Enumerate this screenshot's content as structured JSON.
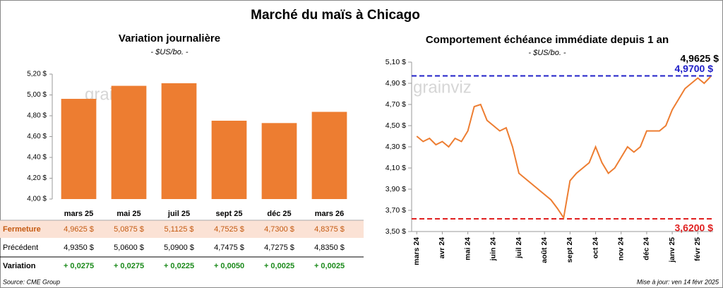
{
  "header": {
    "title": "Marché du maïs à Chicago"
  },
  "chart_data": [
    {
      "type": "bar",
      "title": "Variation journalière",
      "subtitle": "- $US/bo. -",
      "watermark": "grainviz",
      "categories": [
        "mars 25",
        "mai 25",
        "juil 25",
        "sept 25",
        "déc 25",
        "mars 26"
      ],
      "values": [
        4.9625,
        5.0875,
        5.1125,
        4.7525,
        4.73,
        4.8375
      ],
      "value_labels": [
        "4,9625  $",
        "5,0875  $",
        "5,1125  $",
        "4,7525  $",
        "4,7300  $",
        "4,8375  $"
      ],
      "color": "#ed7d31",
      "ylim": [
        4.0,
        5.2
      ],
      "yticks": [
        {
          "value": 4.0,
          "label": "4,00 $"
        },
        {
          "value": 4.2,
          "label": "4,20 $"
        },
        {
          "value": 4.4,
          "label": "4,40 $"
        },
        {
          "value": 4.6,
          "label": "4,60 $"
        },
        {
          "value": 4.8,
          "label": "4,80 $"
        },
        {
          "value": 5.0,
          "label": "5,00 $"
        },
        {
          "value": 5.2,
          "label": "5,20 $"
        }
      ]
    },
    {
      "type": "line",
      "title": "Comportement échéance immédiate depuis 1 an",
      "subtitle": "- $US/bo. -",
      "watermark": "grainviz",
      "x": [
        0,
        0.25,
        0.5,
        0.75,
        1,
        1.25,
        1.5,
        1.75,
        2,
        2.25,
        2.5,
        2.75,
        3,
        3.25,
        3.5,
        3.75,
        4,
        4.25,
        4.5,
        4.75,
        5,
        5.25,
        5.5,
        5.75,
        6,
        6.25,
        6.5,
        6.75,
        7,
        7.25,
        7.5,
        7.75,
        8,
        8.25,
        8.5,
        8.75,
        9,
        9.25,
        9.5,
        9.75,
        10,
        10.25,
        10.5,
        10.75,
        11,
        11.25,
        11.5
      ],
      "values": [
        4.4,
        4.35,
        4.38,
        4.32,
        4.35,
        4.3,
        4.38,
        4.35,
        4.45,
        4.68,
        4.7,
        4.55,
        4.5,
        4.45,
        4.48,
        4.3,
        4.05,
        4.0,
        3.95,
        3.9,
        3.85,
        3.8,
        3.72,
        3.63,
        3.98,
        4.05,
        4.1,
        4.15,
        4.3,
        4.15,
        4.05,
        4.1,
        4.2,
        4.3,
        4.25,
        4.3,
        4.45,
        4.45,
        4.45,
        4.5,
        4.65,
        4.75,
        4.85,
        4.9,
        4.95,
        4.9,
        4.9625
      ],
      "color": "#ed7d31",
      "ylim": [
        3.5,
        5.1
      ],
      "xlim": [
        -0.2,
        11.6
      ],
      "yticks": [
        {
          "value": 3.5,
          "label": "3,50 $"
        },
        {
          "value": 3.7,
          "label": "3,70 $"
        },
        {
          "value": 3.9,
          "label": "3,90 $"
        },
        {
          "value": 4.1,
          "label": "4,10 $"
        },
        {
          "value": 4.3,
          "label": "4,30 $"
        },
        {
          "value": 4.5,
          "label": "4,50 $"
        },
        {
          "value": 4.7,
          "label": "4,70 $"
        },
        {
          "value": 4.9,
          "label": "4,90 $"
        },
        {
          "value": 5.1,
          "label": "5,10 $"
        }
      ],
      "xticks": [
        {
          "value": 0,
          "label": "mars 24"
        },
        {
          "value": 1,
          "label": "avr 24"
        },
        {
          "value": 2,
          "label": "mai 24"
        },
        {
          "value": 3,
          "label": "juin 24"
        },
        {
          "value": 4,
          "label": "juil 24"
        },
        {
          "value": 5,
          "label": "août 24"
        },
        {
          "value": 6,
          "label": "sept 24"
        },
        {
          "value": 7,
          "label": "oct 24"
        },
        {
          "value": 8,
          "label": "nov 24"
        },
        {
          "value": 9,
          "label": "déc 24"
        },
        {
          "value": 10,
          "label": "janv 25"
        },
        {
          "value": 11,
          "label": "févr 25"
        }
      ],
      "max_line": {
        "value": 4.97,
        "label": "4,9700 $",
        "color": "#2020c8"
      },
      "min_line": {
        "value": 3.62,
        "label": "3,6200 $",
        "color": "#e02020"
      },
      "last_label": "4,9625 $"
    }
  ],
  "table": {
    "fermeture_label": "Fermeture",
    "rows": [
      {
        "label": "Précédent",
        "cells": [
          "4,9350  $",
          "5,0600  $",
          "5,0900  $",
          "4,7475  $",
          "4,7275  $",
          "4,8350  $"
        ]
      },
      {
        "label": "Variation",
        "cells": [
          "+ 0,0275",
          "+ 0,0275",
          "+ 0,0225",
          "+ 0,0050",
          "+ 0,0025",
          "+ 0,0025"
        ]
      }
    ]
  },
  "footer": {
    "source": "Source: CME Group",
    "updated": "Mise à jour: ven 14 févr 2025"
  }
}
